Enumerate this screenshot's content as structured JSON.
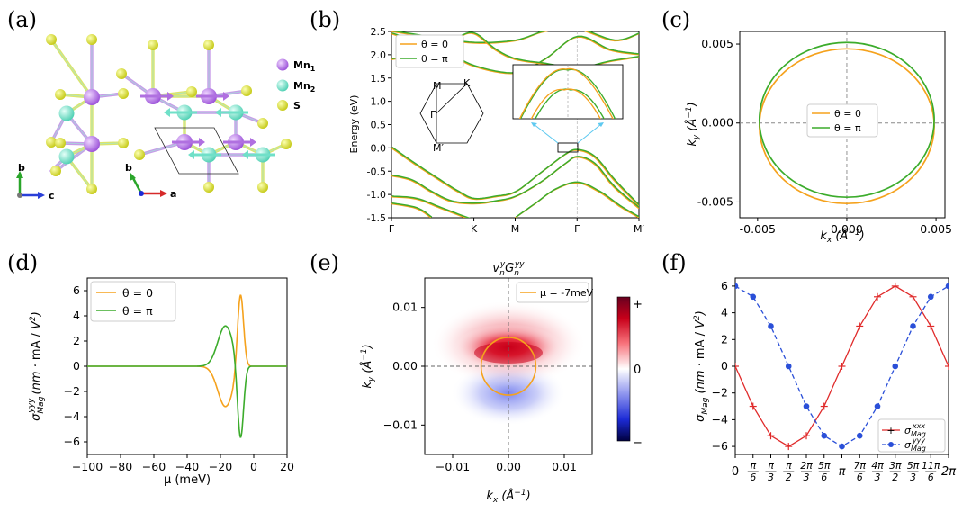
{
  "panel_labels": [
    "(a)",
    "(b)",
    "(c)",
    "(d)",
    "(e)",
    "(f)"
  ],
  "structure": {
    "legend": [
      "Mn",
      "Mn",
      "S"
    ],
    "legend_subscripts": [
      "1",
      "2"
    ],
    "axes_left": [
      "b",
      "c"
    ],
    "axes_right": [
      "b",
      "a"
    ],
    "colors": {
      "mn1": "#b070e0",
      "mn2": "#70e0c8",
      "s": "#d6dc1e"
    }
  },
  "chart_data": [
    {
      "id": "b",
      "type": "line",
      "ylabel": "Energy (eV)",
      "ylim": [
        -1.5,
        2.5
      ],
      "yticks": [
        "-1.5",
        "-1.0",
        "-0.5",
        "0.0",
        "0.5",
        "1.0",
        "1.5",
        "2.0",
        "2.5"
      ],
      "xtick_labels": [
        "Γ",
        "K",
        "M",
        "Γ",
        "M′"
      ],
      "xtick_positions": [
        0,
        0.333,
        0.5,
        0.75,
        1.0
      ],
      "legend": [
        "θ = 0",
        "θ = π"
      ],
      "colors": [
        "#f5a21d",
        "#3cac2c"
      ],
      "bz_labels": [
        "M",
        "K",
        "Γ",
        "M′"
      ]
    },
    {
      "id": "c",
      "type": "line",
      "xlabel": "kx (Å⁻¹)",
      "ylabel": "ky (Å⁻¹)",
      "xlim": [
        -0.006,
        0.0055
      ],
      "ylim": [
        -0.006,
        0.0058
      ],
      "xticks": [
        "-0.005",
        "0.000",
        "0.005"
      ],
      "yticks": [
        "-0.005",
        "0.000",
        "0.005"
      ],
      "legend": [
        "θ = 0",
        "θ = π"
      ],
      "series": [
        {
          "name": "θ = 0",
          "center": [
            0,
            -0.0002
          ],
          "radius": 0.0049
        },
        {
          "name": "θ = π",
          "center": [
            0,
            0.0002
          ],
          "radius": 0.0049
        }
      ]
    },
    {
      "id": "d",
      "type": "line",
      "xlabel": "μ (meV)",
      "ylabel": "σyyy Mag (nm · mA / V²)",
      "xlim": [
        -100,
        20
      ],
      "ylim": [
        -7,
        7
      ],
      "xticks": [
        "−100",
        "−80",
        "−60",
        "−40",
        "−20",
        "0",
        "20"
      ],
      "yticks": [
        "−6",
        "−4",
        "−2",
        "0",
        "2",
        "4",
        "6"
      ],
      "legend": [
        "θ = 0",
        "θ = π"
      ],
      "series": [
        {
          "name": "θ = 0",
          "minimum": [
            -17,
            -3.2
          ],
          "maximum": [
            -8,
            6.1
          ]
        },
        {
          "name": "θ = π",
          "maximum": [
            -17,
            3.2
          ],
          "minimum": [
            -8,
            -6.1
          ]
        }
      ]
    },
    {
      "id": "e",
      "type": "heatmap",
      "title": "vyn Gyyn",
      "xlabel": "kx (Å⁻¹)",
      "ylabel": "ky (Å⁻¹)",
      "xlim": [
        -0.015,
        0.015
      ],
      "ylim": [
        -0.015,
        0.015
      ],
      "xticks": [
        "−0.01",
        "0.00",
        "0.01"
      ],
      "yticks": [
        "−0.01",
        "0.00",
        "0.01"
      ],
      "legend": [
        "μ = -7meV"
      ],
      "colorbar": [
        "+",
        "0",
        "−"
      ]
    },
    {
      "id": "f",
      "type": "line",
      "ylabel": "σMag (nm · mA / V²)",
      "ylim": [
        -6.6,
        6.6
      ],
      "yticks": [
        "−6",
        "−4",
        "−2",
        "0",
        "2",
        "4",
        "6"
      ],
      "xticks": [
        "0",
        "π/6",
        "π/3",
        "π/2",
        "2π/3",
        "5π/6",
        "π",
        "7π/6",
        "4π/3",
        "3π/2",
        "5π/3",
        "11π/6",
        "2π"
      ],
      "legend": [
        "σxxx Mag",
        "σyyy Mag"
      ],
      "series": [
        {
          "name": "σxxx Mag",
          "values": [
            0,
            -3.0,
            -5.2,
            -6.0,
            -5.2,
            -3.0,
            0,
            3.0,
            5.2,
            6.0,
            5.2,
            3.0,
            0
          ]
        },
        {
          "name": "σyyy Mag",
          "values": [
            6.0,
            5.2,
            3.0,
            0,
            -3.0,
            -5.2,
            -6.0,
            -5.2,
            -3.0,
            0,
            3.0,
            5.2,
            6.0
          ]
        }
      ]
    }
  ]
}
